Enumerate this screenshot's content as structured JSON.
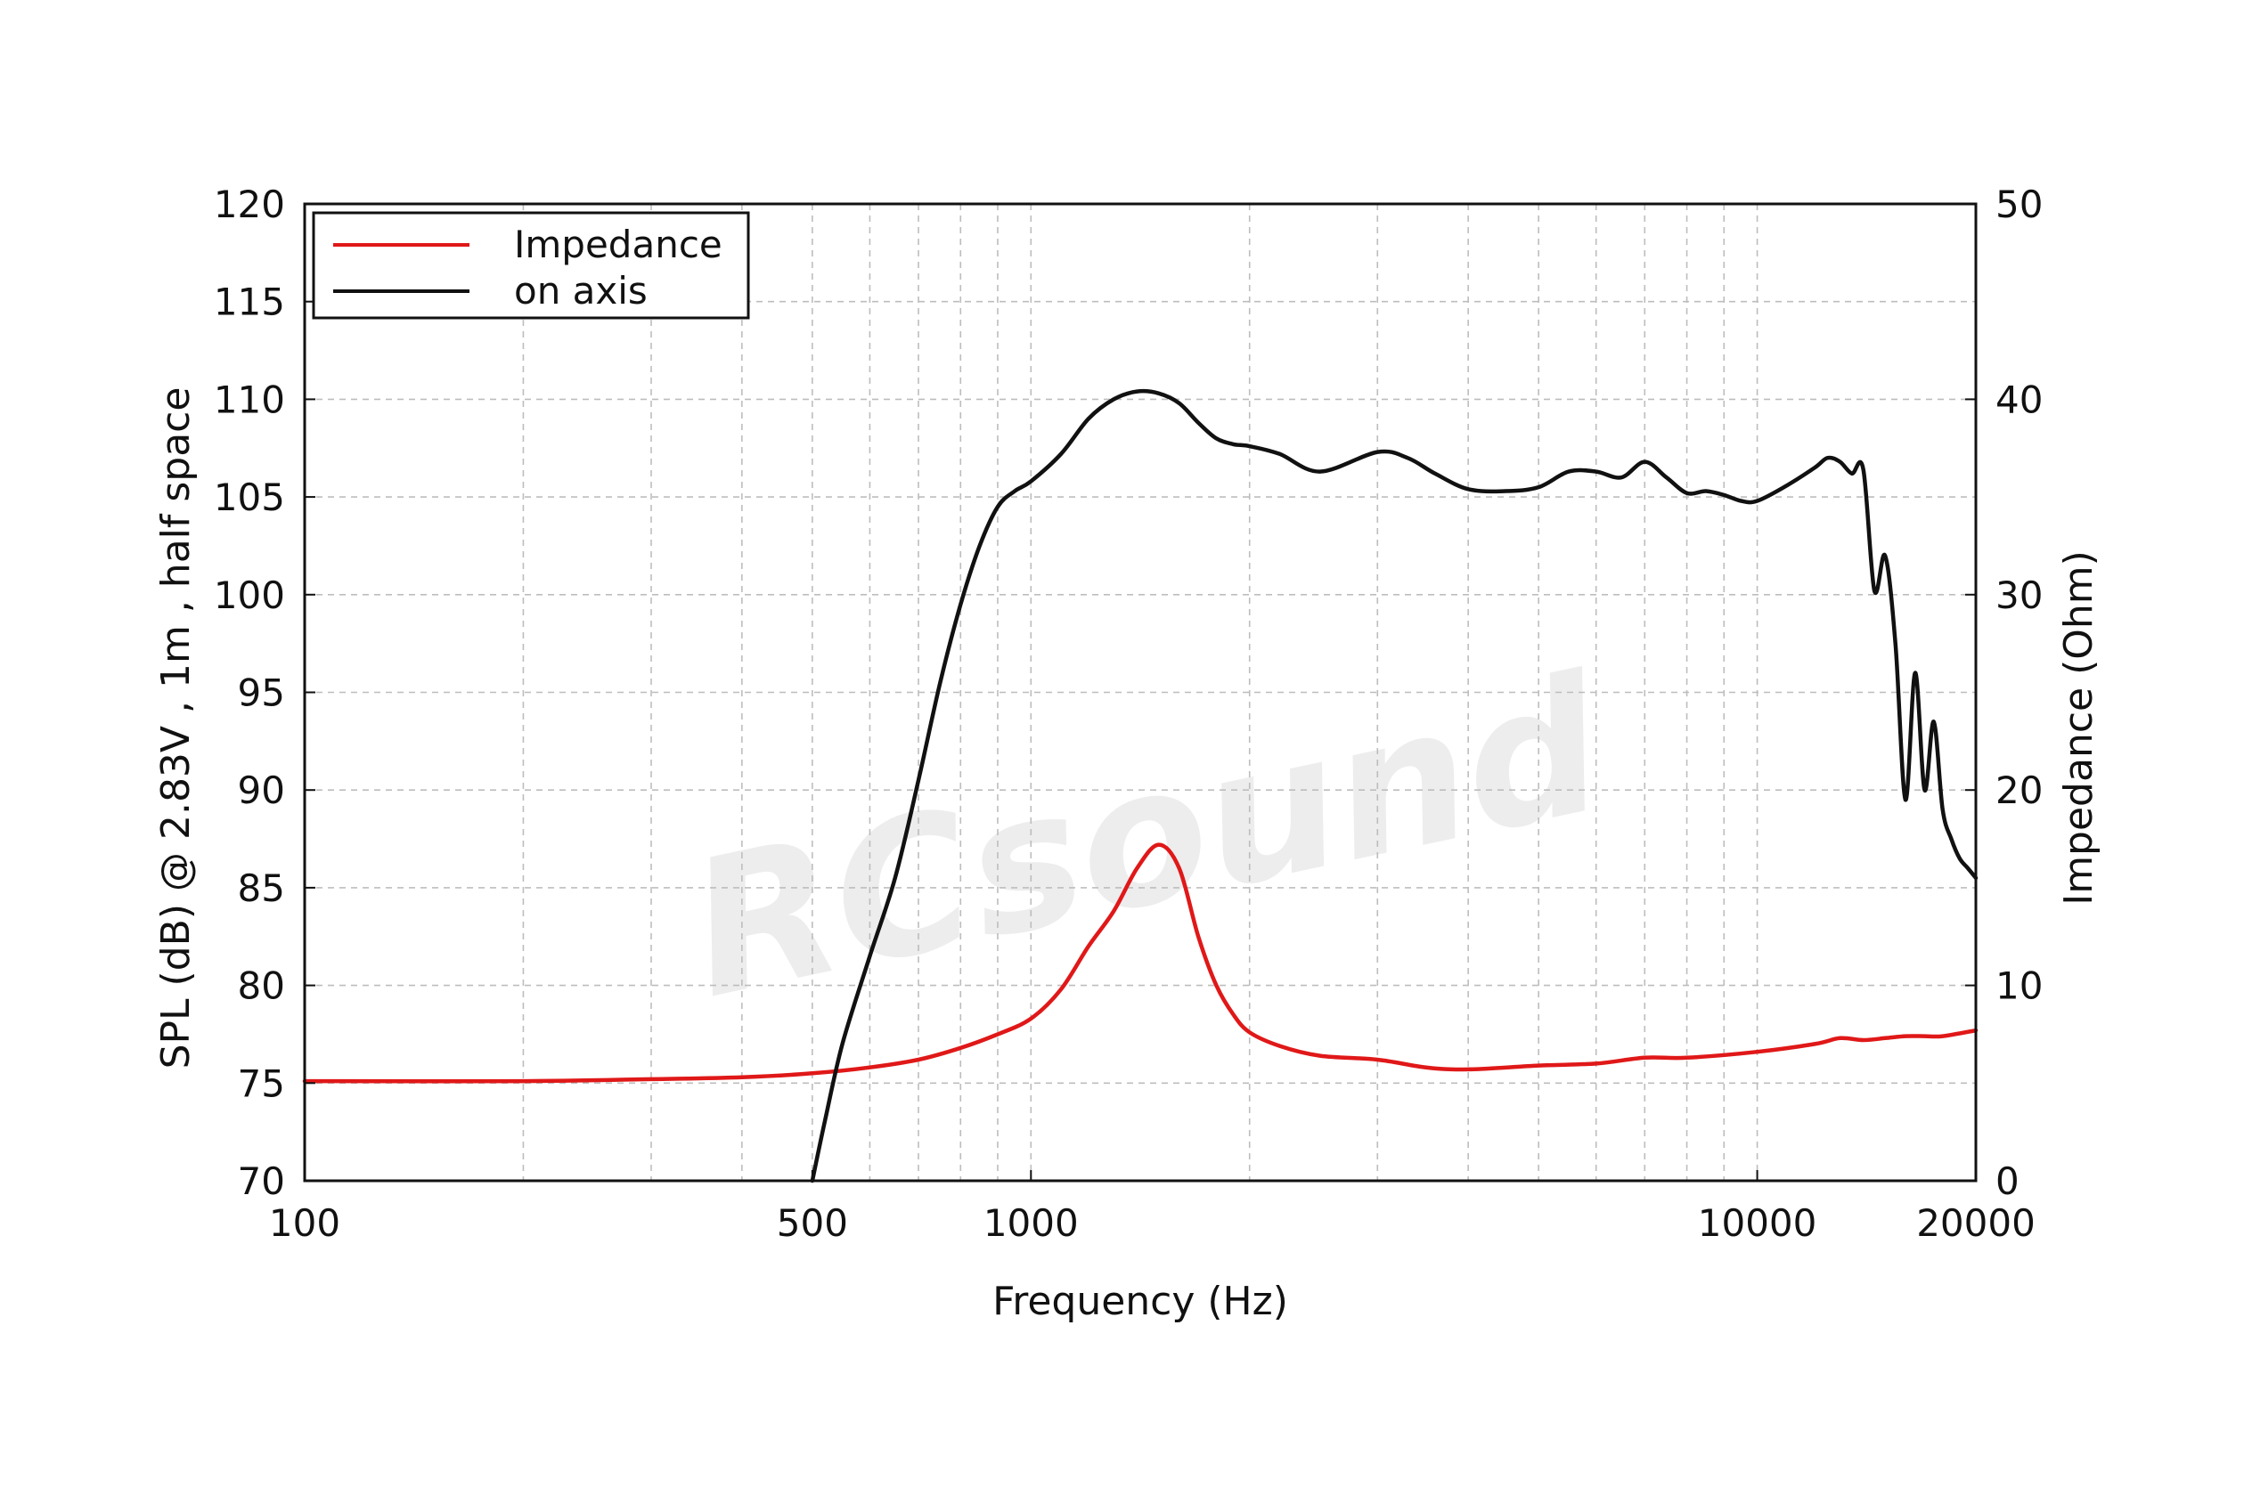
{
  "watermark": "RCsound",
  "chart_data": {
    "type": "line",
    "title": "",
    "xlabel": "Frequency (Hz)",
    "ylabel": "SPL (dB) @ 2.83V , 1m , half space",
    "y2label": "Impedance (Ohm)",
    "x_scale": "log",
    "xlim": [
      100,
      20000
    ],
    "ylim": [
      70,
      120
    ],
    "y2lim": [
      0,
      50
    ],
    "x_ticks": [
      "100",
      "500",
      "1000",
      "10000",
      "20000"
    ],
    "y_ticks": [
      "70",
      "75",
      "80",
      "85",
      "90",
      "95",
      "100",
      "105",
      "110",
      "115",
      "120"
    ],
    "y2_ticks": [
      "0",
      "10",
      "20",
      "30",
      "40",
      "50"
    ],
    "grid": true,
    "legend_position": "top-left",
    "colors": {
      "impedance": "#e01818",
      "on_axis": "#111111"
    },
    "series": [
      {
        "name": "Impedance",
        "axis": "right",
        "x": [
          100,
          200,
          300,
          400,
          500,
          600,
          700,
          800,
          900,
          1000,
          1100,
          1200,
          1300,
          1400,
          1500,
          1600,
          1700,
          1800,
          1900,
          2000,
          2200,
          2500,
          3000,
          3500,
          4000,
          5000,
          6000,
          7000,
          8000,
          10000,
          12000,
          13000,
          14000,
          15000,
          16000,
          17000,
          18000,
          20000
        ],
        "y": [
          5.1,
          5.1,
          5.2,
          5.3,
          5.5,
          5.8,
          6.2,
          6.8,
          7.5,
          8.3,
          9.8,
          12.0,
          13.8,
          16.0,
          17.2,
          16.0,
          12.5,
          10.0,
          8.5,
          7.6,
          6.9,
          6.4,
          6.2,
          5.8,
          5.7,
          5.9,
          6.0,
          6.3,
          6.3,
          6.6,
          7.0,
          7.3,
          7.2,
          7.3,
          7.4,
          7.4,
          7.4,
          7.7
        ]
      },
      {
        "name": "on axis",
        "axis": "left",
        "x": [
          500,
          520,
          550,
          600,
          650,
          700,
          750,
          800,
          850,
          900,
          950,
          1000,
          1100,
          1200,
          1300,
          1400,
          1500,
          1600,
          1700,
          1800,
          1900,
          2000,
          2200,
          2500,
          3000,
          3300,
          3600,
          4000,
          4500,
          5000,
          5500,
          6000,
          6500,
          7000,
          7500,
          8000,
          8500,
          9000,
          9500,
          10000,
          11000,
          12000,
          12500,
          13000,
          13500,
          14000,
          14500,
          15000,
          15500,
          16000,
          16500,
          17000,
          17500,
          18000,
          18500,
          19000,
          19500,
          20000
        ],
        "y": [
          70.0,
          73.0,
          77.0,
          81.5,
          85.5,
          90.5,
          95.5,
          99.5,
          102.5,
          104.5,
          105.3,
          105.8,
          107.2,
          109.0,
          110.0,
          110.4,
          110.3,
          109.8,
          108.8,
          108.0,
          107.7,
          107.6,
          107.2,
          106.3,
          107.3,
          107.0,
          106.2,
          105.4,
          105.3,
          105.5,
          106.3,
          106.3,
          106.0,
          106.8,
          106.0,
          105.2,
          105.3,
          105.1,
          104.8,
          104.8,
          105.6,
          106.5,
          107.0,
          106.8,
          106.2,
          106.4,
          100.2,
          102.0,
          97.5,
          89.5,
          96.0,
          90.0,
          93.5,
          89.0,
          87.5,
          86.5,
          86.0,
          85.5
        ]
      }
    ]
  }
}
